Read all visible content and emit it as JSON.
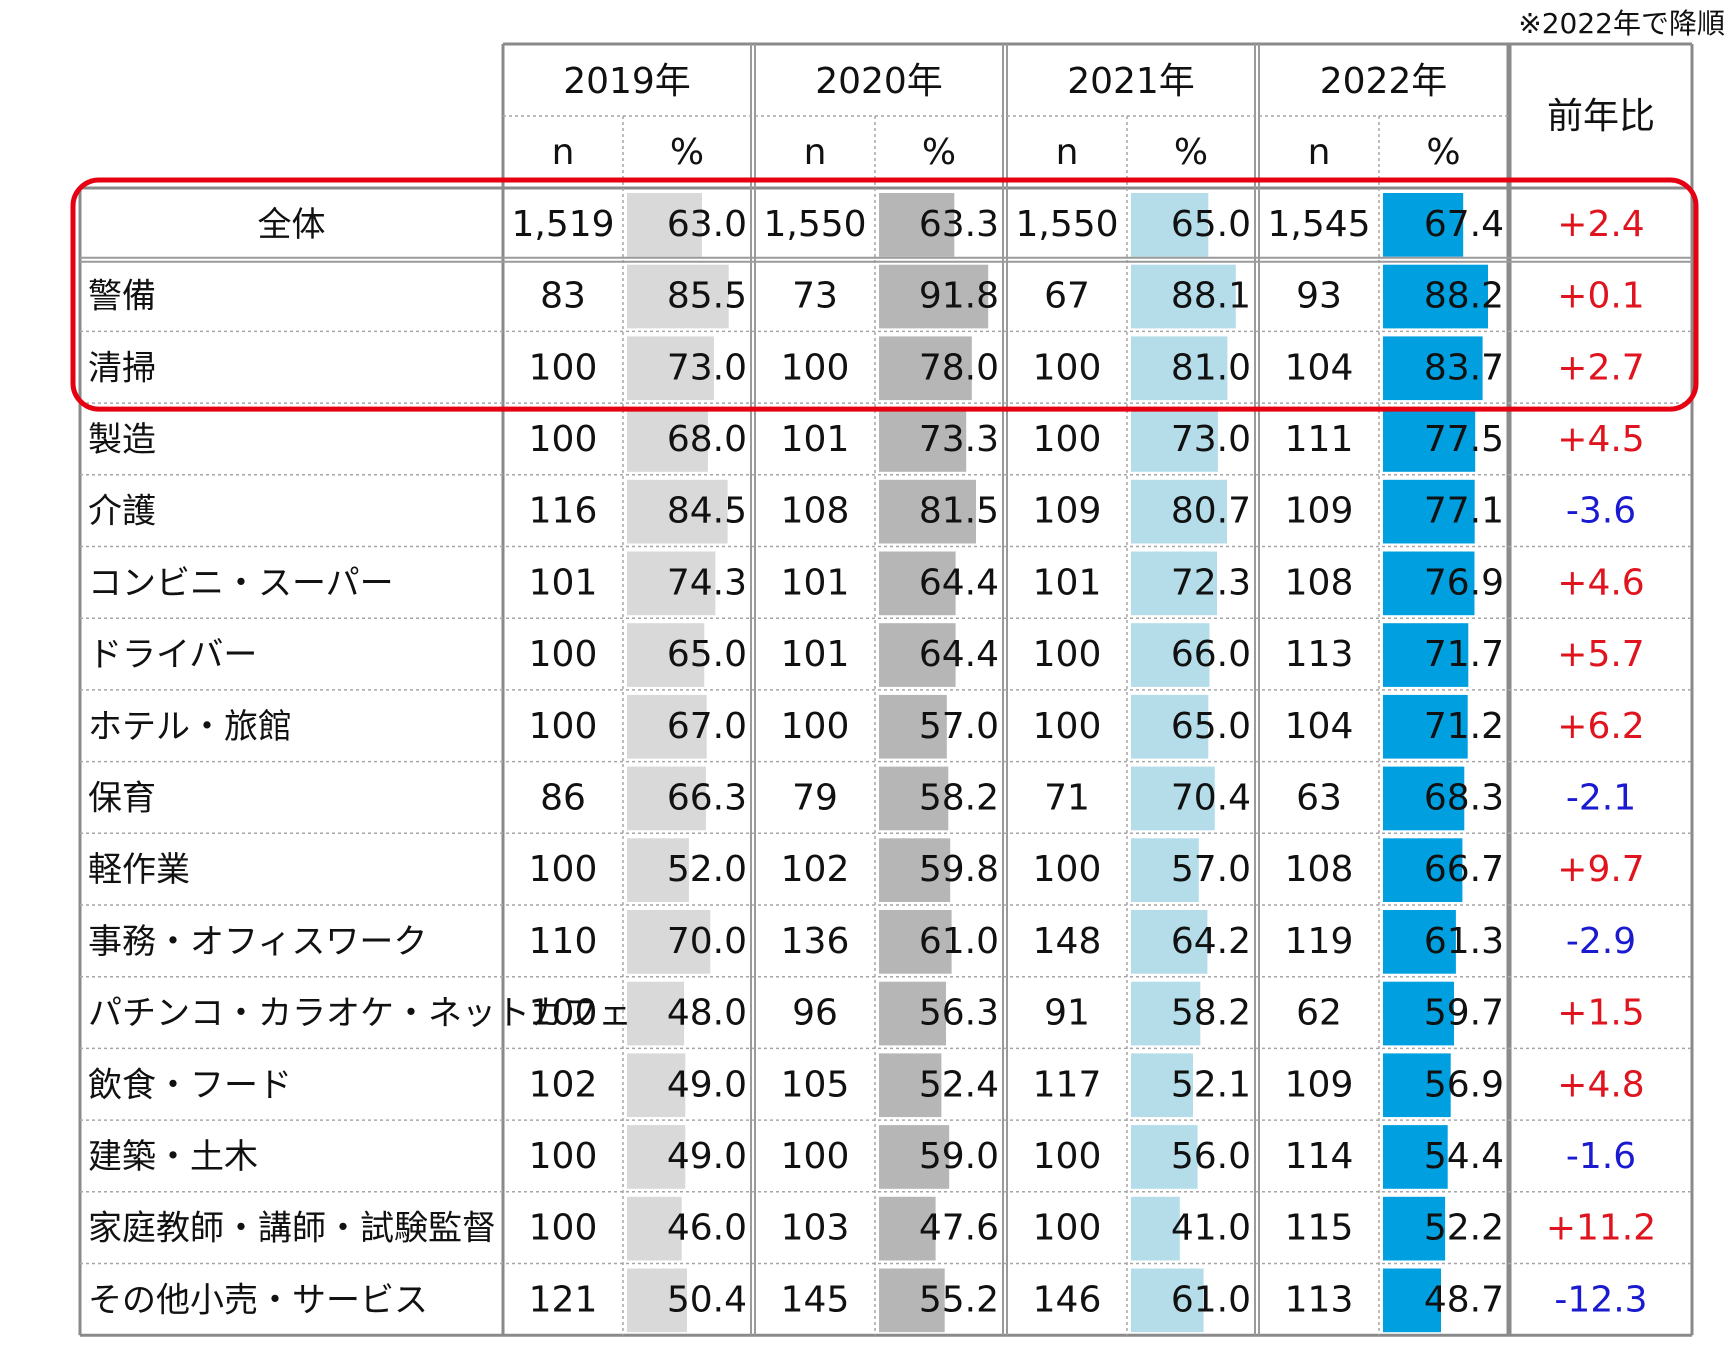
{
  "note": "※2022年で降順",
  "colors": {
    "bar_2019": "#d9d9d9",
    "bar_2020": "#b6b6b6",
    "bar_2021": "#b4dde9",
    "bar_2022": "#00a0e0",
    "positive": "#e0141e",
    "negative": "#1a1ad0",
    "highlight": "#e50012"
  },
  "chart_data": {
    "type": "table",
    "title": "",
    "years": [
      "2019年",
      "2020年",
      "2021年",
      "2022年"
    ],
    "sub_headers": [
      "n",
      "%"
    ],
    "change_header": "前年比",
    "rows": [
      {
        "label": "全体",
        "n": [
          "1,519",
          "1,550",
          "1,550",
          "1,545"
        ],
        "pct": [
          "63.0",
          "63.3",
          "65.0",
          "67.4"
        ],
        "change": "+2.4"
      },
      {
        "label": "警備",
        "n": [
          "83",
          "73",
          "67",
          "93"
        ],
        "pct": [
          "85.5",
          "91.8",
          "88.1",
          "88.2"
        ],
        "change": "+0.1"
      },
      {
        "label": "清掃",
        "n": [
          "100",
          "100",
          "100",
          "104"
        ],
        "pct": [
          "73.0",
          "78.0",
          "81.0",
          "83.7"
        ],
        "change": "+2.7"
      },
      {
        "label": "製造",
        "n": [
          "100",
          "101",
          "100",
          "111"
        ],
        "pct": [
          "68.0",
          "73.3",
          "73.0",
          "77.5"
        ],
        "change": "+4.5"
      },
      {
        "label": "介護",
        "n": [
          "116",
          "108",
          "109",
          "109"
        ],
        "pct": [
          "84.5",
          "81.5",
          "80.7",
          "77.1"
        ],
        "change": "-3.6"
      },
      {
        "label": "コンビニ・スーパー",
        "n": [
          "101",
          "101",
          "101",
          "108"
        ],
        "pct": [
          "74.3",
          "64.4",
          "72.3",
          "76.9"
        ],
        "change": "+4.6"
      },
      {
        "label": "ドライバー",
        "n": [
          "100",
          "101",
          "100",
          "113"
        ],
        "pct": [
          "65.0",
          "64.4",
          "66.0",
          "71.7"
        ],
        "change": "+5.7"
      },
      {
        "label": "ホテル・旅館",
        "n": [
          "100",
          "100",
          "100",
          "104"
        ],
        "pct": [
          "67.0",
          "57.0",
          "65.0",
          "71.2"
        ],
        "change": "+6.2"
      },
      {
        "label": "保育",
        "n": [
          "86",
          "79",
          "71",
          "63"
        ],
        "pct": [
          "66.3",
          "58.2",
          "70.4",
          "68.3"
        ],
        "change": "-2.1"
      },
      {
        "label": "軽作業",
        "n": [
          "100",
          "102",
          "100",
          "108"
        ],
        "pct": [
          "52.0",
          "59.8",
          "57.0",
          "66.7"
        ],
        "change": "+9.7"
      },
      {
        "label": "事務・オフィスワーク",
        "n": [
          "110",
          "136",
          "148",
          "119"
        ],
        "pct": [
          "70.0",
          "61.0",
          "64.2",
          "61.3"
        ],
        "change": "-2.9"
      },
      {
        "label": "パチンコ・カラオケ・ネットカフェ",
        "n": [
          "100",
          "96",
          "91",
          "62"
        ],
        "pct": [
          "48.0",
          "56.3",
          "58.2",
          "59.7"
        ],
        "change": "+1.5"
      },
      {
        "label": "飲食・フード",
        "n": [
          "102",
          "105",
          "117",
          "109"
        ],
        "pct": [
          "49.0",
          "52.4",
          "52.1",
          "56.9"
        ],
        "change": "+4.8"
      },
      {
        "label": "建築・土木",
        "n": [
          "100",
          "100",
          "100",
          "114"
        ],
        "pct": [
          "49.0",
          "59.0",
          "56.0",
          "54.4"
        ],
        "change": "-1.6"
      },
      {
        "label": "家庭教師・講師・試験監督",
        "n": [
          "100",
          "103",
          "100",
          "115"
        ],
        "pct": [
          "46.0",
          "47.6",
          "41.0",
          "52.2"
        ],
        "change": "+11.2"
      },
      {
        "label": "その他小売・サービス",
        "n": [
          "121",
          "145",
          "146",
          "113"
        ],
        "pct": [
          "50.4",
          "55.2",
          "61.0",
          "48.7"
        ],
        "change": "-12.3"
      }
    ]
  }
}
